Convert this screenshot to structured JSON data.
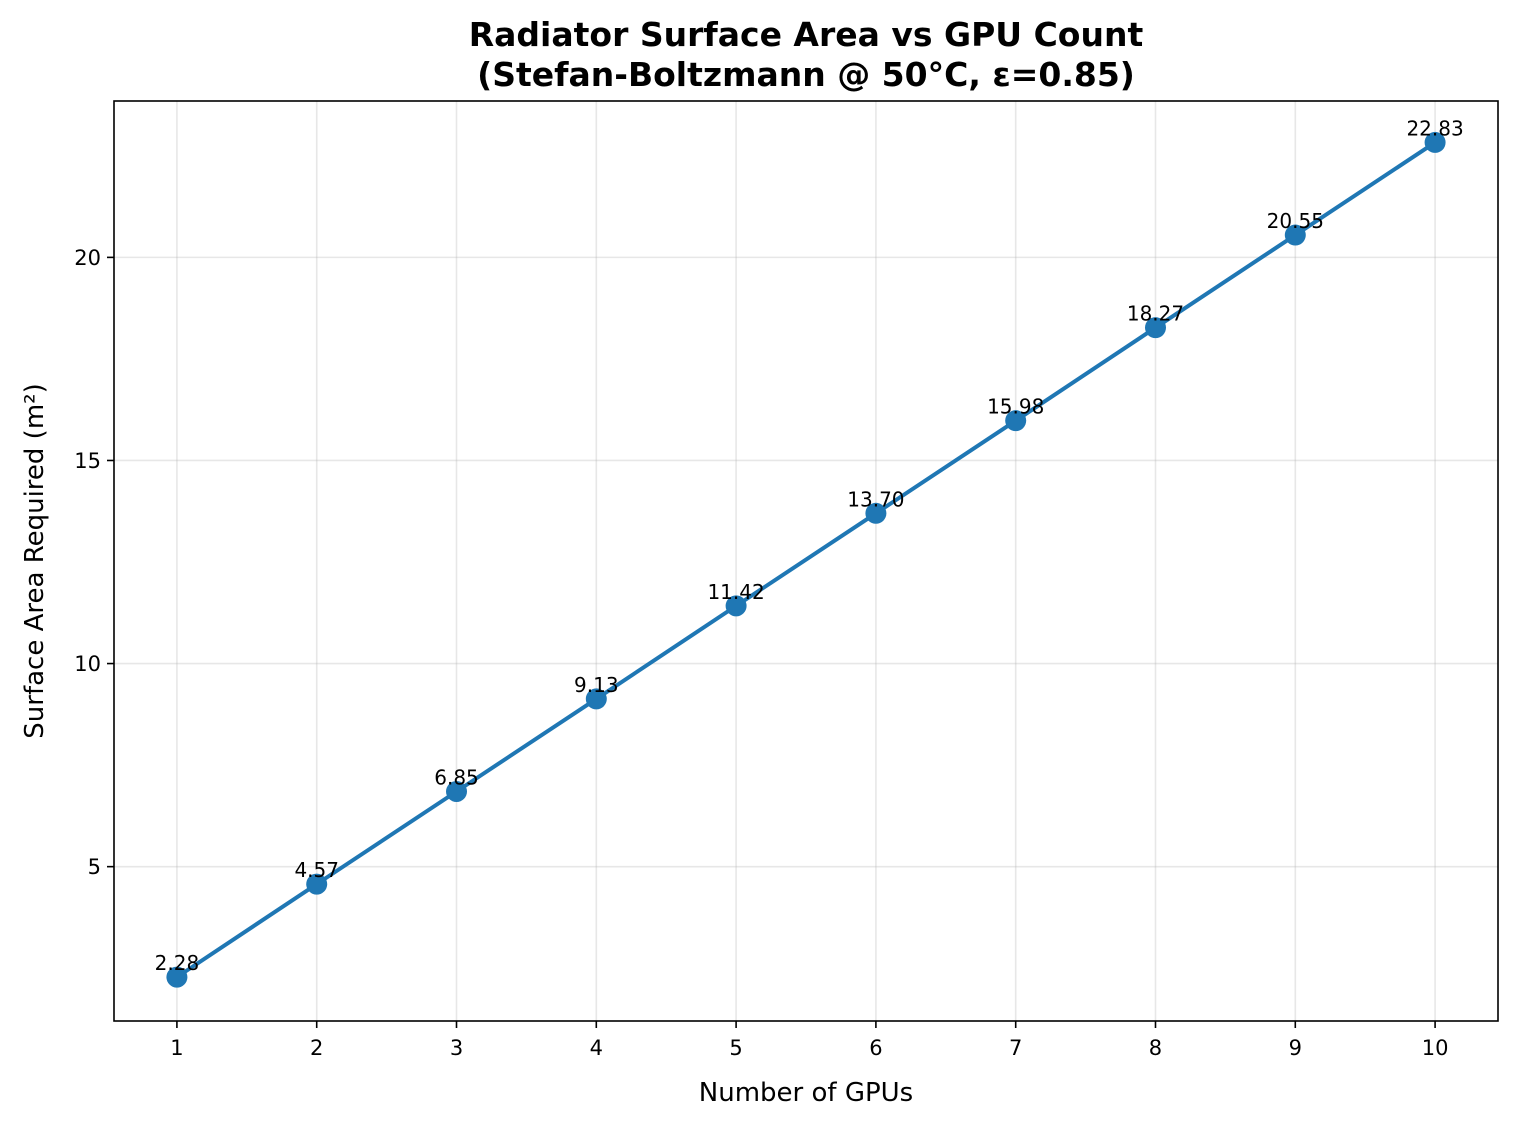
{
  "chart_data": {
    "type": "line",
    "title": "Radiator Surface Area vs GPU Count",
    "subtitle": "(Stefan-Boltzmann @ 50°C, ε=0.85)",
    "xlabel": "Number of GPUs",
    "ylabel": "Surface Area Required (m²)",
    "x": [
      1,
      2,
      3,
      4,
      5,
      6,
      7,
      8,
      9,
      10
    ],
    "series": [
      {
        "values": [
          2.28,
          4.57,
          6.85,
          9.13,
          11.42,
          13.7,
          15.98,
          18.27,
          20.55,
          22.83
        ],
        "data_labels": [
          "2.28",
          "4.57",
          "6.85",
          "9.13",
          "11.42",
          "13.70",
          "15.98",
          "18.27",
          "20.55",
          "22.83"
        ],
        "color": "#1f77b4",
        "marker": "circle"
      }
    ],
    "xticks": [
      "1",
      "2",
      "3",
      "4",
      "5",
      "6",
      "7",
      "8",
      "9",
      "10"
    ],
    "yticks": [
      {
        "value": 5,
        "label": "5"
      },
      {
        "value": 10,
        "label": "10"
      },
      {
        "value": 15,
        "label": "15"
      },
      {
        "value": 20,
        "label": "20"
      }
    ],
    "xlim": [
      0.55,
      10.45
    ],
    "ylim": [
      1.2,
      23.85
    ],
    "grid": true,
    "legend": "none"
  }
}
